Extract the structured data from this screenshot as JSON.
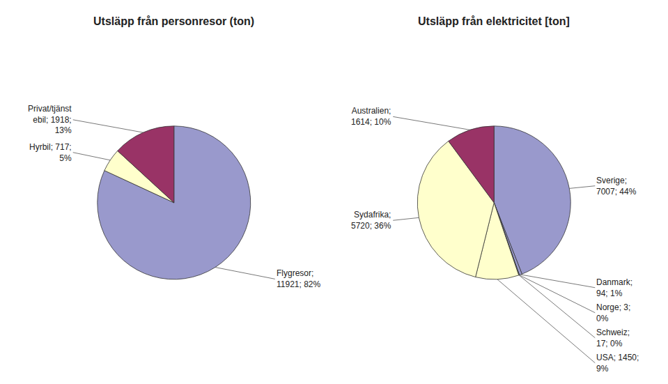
{
  "chart_data": [
    {
      "type": "pie",
      "title": "Utsläpp från personresor (ton)",
      "values": [
        11921,
        717,
        1918
      ],
      "value_labels": [
        "Flygresor;\n11921; 82%",
        "Hyrbil; 717;\n5%",
        "Privat/tjänst\nebil; 1918;\n13%"
      ],
      "colors": [
        "#9999CC",
        "#FFFFCC",
        "#993366"
      ],
      "data_labels": true
    },
    {
      "type": "pie",
      "title": "Utsläpp från elektricitet [ton]",
      "values": [
        7007,
        94,
        3,
        17,
        1450,
        5720,
        1614
      ],
      "value_labels": [
        "Sverige;\n7007; 44%",
        "Danmark;\n94; 1%",
        "Norge; 3;\n0%",
        "Schweiz;\n17; 0%",
        "USA; 1450;\n9%",
        "Sydafrika;\n5720; 36%",
        "Australien;\n1614; 10%"
      ],
      "colors": [
        "#9999CC",
        "#9999CC",
        "#111111",
        "#AADDDD",
        "#FFFFCC",
        "#FFFFCC",
        "#993366"
      ],
      "data_labels": true
    }
  ]
}
